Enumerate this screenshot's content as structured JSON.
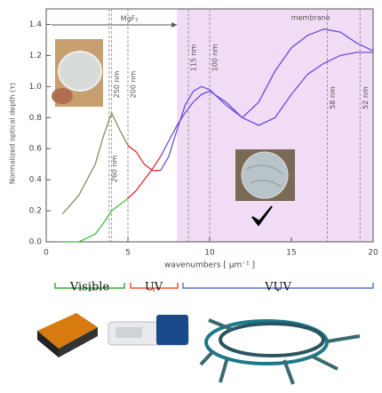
{
  "chart_data": {
    "type": "line",
    "x_label": "wavenumbers [ μm⁻¹ ]",
    "y_label": "Normalized optical depth (τ)",
    "xlim": [
      0,
      20
    ],
    "xticks": [
      0,
      5,
      10,
      15,
      20
    ],
    "ylim": [
      0,
      1.5
    ],
    "yticks": [
      {
        "value": 0,
        "label": "0.0"
      },
      0.2,
      0.4,
      0.6,
      0.8,
      {
        "value": 1,
        "label": "1.0"
      },
      1.2,
      1.4
    ],
    "x": [
      1,
      2,
      3,
      3.5,
      4,
      4.5,
      5,
      5.5,
      6,
      6.5,
      7,
      7.5,
      8,
      8.5,
      9,
      9.5,
      10,
      11,
      12,
      13,
      14,
      15,
      16,
      17,
      18,
      19,
      20
    ],
    "series": [
      {
        "color": "#8a8a66",
        "values": [
          0.18,
          0.3,
          0.5,
          0.68,
          0.83,
          0.72,
          0.62,
          null,
          null,
          null,
          null,
          null,
          null,
          null,
          null,
          null,
          null,
          null,
          null,
          null,
          null,
          null,
          null,
          null,
          null,
          null,
          null
        ]
      },
      {
        "color": "#e03030",
        "values": [
          null,
          null,
          null,
          null,
          null,
          null,
          0.62,
          0.58,
          0.5,
          0.46,
          0.46,
          null,
          null,
          null,
          null,
          null,
          null,
          null,
          null,
          null,
          null,
          null,
          null,
          null,
          null,
          null,
          null
        ]
      },
      {
        "color": "#6a4fd8",
        "values": [
          null,
          null,
          null,
          null,
          null,
          null,
          null,
          null,
          null,
          null,
          0.46,
          0.55,
          0.72,
          0.88,
          0.97,
          1.0,
          0.98,
          0.88,
          0.8,
          0.9,
          1.1,
          1.25,
          1.33,
          1.37,
          1.35,
          1.28,
          1.23
        ]
      },
      {
        "color": "#44bb44",
        "values": [
          0.0,
          0.0,
          0.05,
          0.12,
          0.2,
          0.24,
          0.28,
          null,
          null,
          null,
          null,
          null,
          null,
          null,
          null,
          null,
          null,
          null,
          null,
          null,
          null,
          null,
          null,
          null,
          null,
          null,
          null
        ]
      },
      {
        "color": "#e03030",
        "values": [
          null,
          null,
          null,
          null,
          null,
          null,
          0.28,
          0.33,
          0.4,
          0.47,
          0.55,
          null,
          null,
          null,
          null,
          null,
          null,
          null,
          null,
          null,
          null,
          null,
          null,
          null,
          null,
          null,
          null
        ]
      },
      {
        "color": "#6a4fd8",
        "values": [
          null,
          null,
          null,
          null,
          null,
          null,
          null,
          null,
          null,
          null,
          0.55,
          0.65,
          0.75,
          0.83,
          0.9,
          0.95,
          0.97,
          0.9,
          0.8,
          0.75,
          0.8,
          0.95,
          1.08,
          1.15,
          1.2,
          1.22,
          1.22
        ]
      }
    ],
    "markers": [
      {
        "label": "250 nm",
        "x": 4
      },
      {
        "label": "200 nm",
        "x": 5
      },
      {
        "label": "260 nm",
        "x": 3.85
      },
      {
        "label": "115 nm",
        "x": 8.7
      },
      {
        "label": "100 nm",
        "x": 10
      },
      {
        "label": "58 nm",
        "x": 17.2
      },
      {
        "label": "52 nm",
        "x": 19.2
      }
    ],
    "mgf2": {
      "label": "MgF₂",
      "range": [
        0,
        8
      ]
    },
    "membrane": {
      "label": "membrane",
      "range": [
        8,
        20
      ]
    },
    "bands": [
      "Visible",
      "UV",
      "VUV"
    ]
  }
}
